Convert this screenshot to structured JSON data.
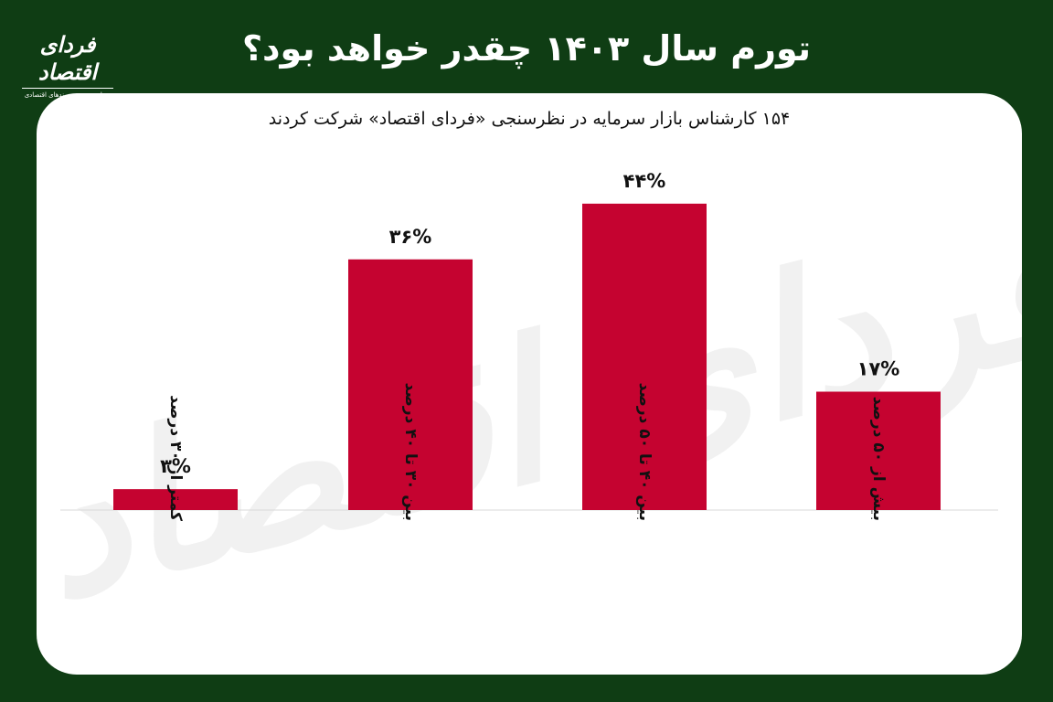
{
  "header": {
    "title": "تورم سال ۱۴۰۳ چقدر خواهد بود؟",
    "logo_text": "فردای اقتصاد",
    "logo_tagline": "رسانه تصویری روندهای اقتصادی"
  },
  "card": {
    "subtitle": "۱۵۴ کارشناس بازار سرمایه در نظرسنجی «فردای اقتصاد» شرکت کردند",
    "watermark": "فردای اقتصاد"
  },
  "colors": {
    "background": "#0f3d14",
    "card": "#ffffff",
    "bar": "#c50330"
  },
  "chart_data": {
    "type": "bar",
    "title": "تورم سال ۱۴۰۳ چقدر خواهد بود؟",
    "categories": [
      "کمتر از ۳۰ درصد",
      "بین ۳۰ تا ۴۰ درصد",
      "بین ۴۰ تا ۵۰ درصد",
      "بیش از ۵۰ درصد"
    ],
    "values": [
      3,
      36,
      44,
      17
    ],
    "value_labels": [
      "۳%",
      "۳۶%",
      "۴۴%",
      "۱۷%"
    ],
    "ylim": [
      0,
      50
    ],
    "grid": false,
    "legend": "none"
  }
}
